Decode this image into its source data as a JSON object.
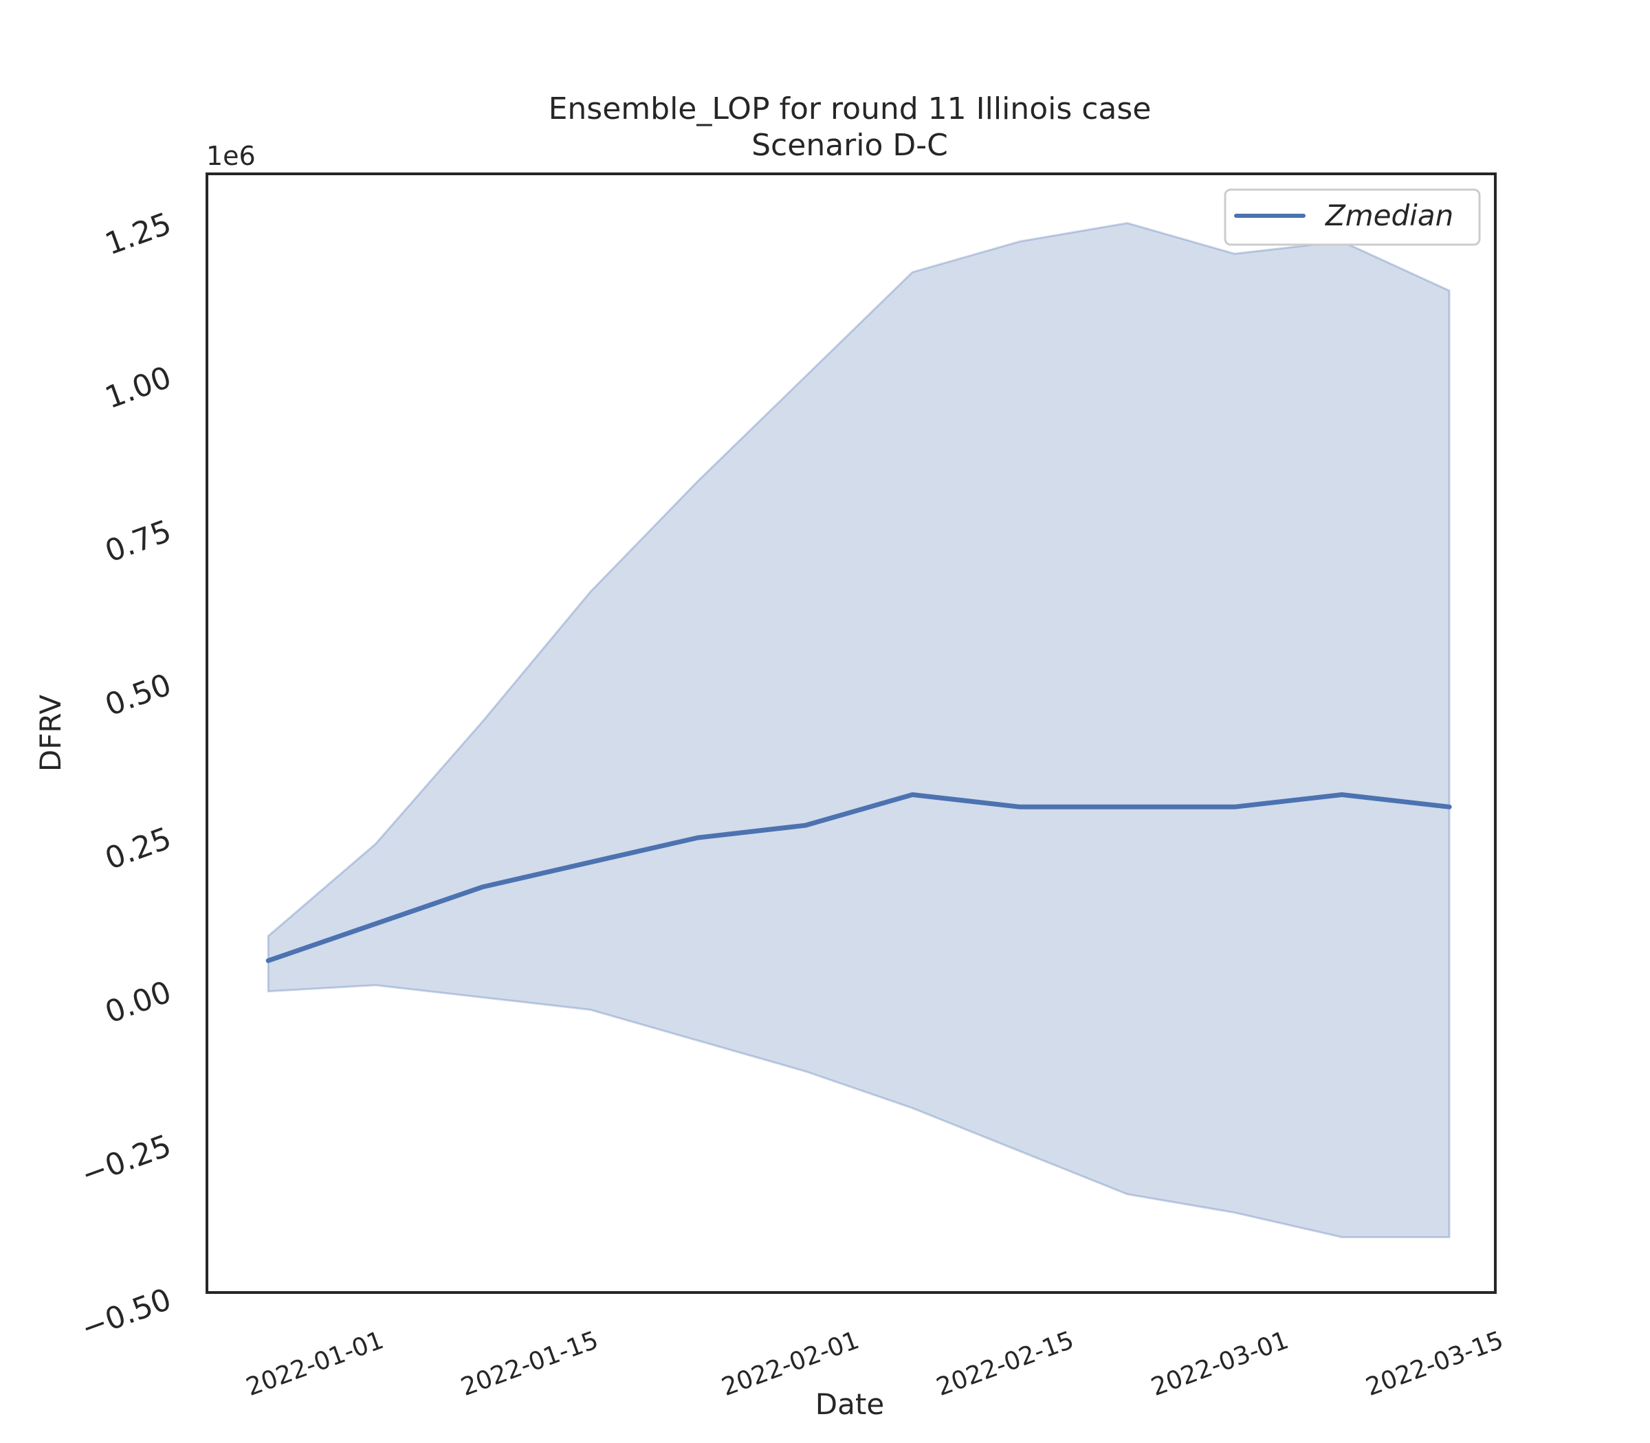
{
  "chart_data": {
    "type": "area",
    "title": "Ensemble_LOP for round 11 Illinois case",
    "subtitle": "Scenario D-C",
    "xlabel": "Date",
    "ylabel": "DFRV",
    "y_offset_label": "1e6",
    "ylim": [
      -0.5,
      1.32
    ],
    "xlim": [
      "2021-12-21",
      "2022-03-15"
    ],
    "grid": false,
    "legend_position": "top-right",
    "y_ticks": [
      {
        "value": -0.5,
        "label": "−0.50"
      },
      {
        "value": -0.25,
        "label": "−0.25"
      },
      {
        "value": 0.0,
        "label": "0.00"
      },
      {
        "value": 0.25,
        "label": "0.25"
      },
      {
        "value": 0.5,
        "label": "0.50"
      },
      {
        "value": 0.75,
        "label": "0.75"
      },
      {
        "value": 1.0,
        "label": "1.00"
      },
      {
        "value": 1.25,
        "label": "1.25"
      }
    ],
    "x_ticks": [
      {
        "value": "2022-01-01",
        "label": "2022-01-01"
      },
      {
        "value": "2022-01-15",
        "label": "2022-01-15"
      },
      {
        "value": "2022-02-01",
        "label": "2022-02-01"
      },
      {
        "value": "2022-02-15",
        "label": "2022-02-15"
      },
      {
        "value": "2022-03-01",
        "label": "2022-03-01"
      },
      {
        "value": "2022-03-15",
        "label": "2022-03-15"
      }
    ],
    "x": [
      "2021-12-25",
      "2022-01-01",
      "2022-01-08",
      "2022-01-15",
      "2022-01-22",
      "2022-01-29",
      "2022-02-05",
      "2022-02-12",
      "2022-02-19",
      "2022-02-26",
      "2022-03-05",
      "2022-03-12"
    ],
    "series": [
      {
        "name": "Zmedian",
        "color": "#4c72b0",
        "values": [
          0.04,
          0.1,
          0.16,
          0.2,
          0.24,
          0.26,
          0.31,
          0.29,
          0.29,
          0.29,
          0.31,
          0.29
        ]
      }
    ],
    "band": {
      "color": "#4c72b0",
      "lower": [
        -0.01,
        0.0,
        -0.02,
        -0.04,
        -0.09,
        -0.14,
        -0.2,
        -0.27,
        -0.34,
        -0.37,
        -0.41,
        -0.41
      ],
      "upper": [
        0.08,
        0.23,
        0.43,
        0.64,
        0.82,
        0.99,
        1.16,
        1.21,
        1.24,
        1.19,
        1.21,
        1.13
      ]
    }
  }
}
